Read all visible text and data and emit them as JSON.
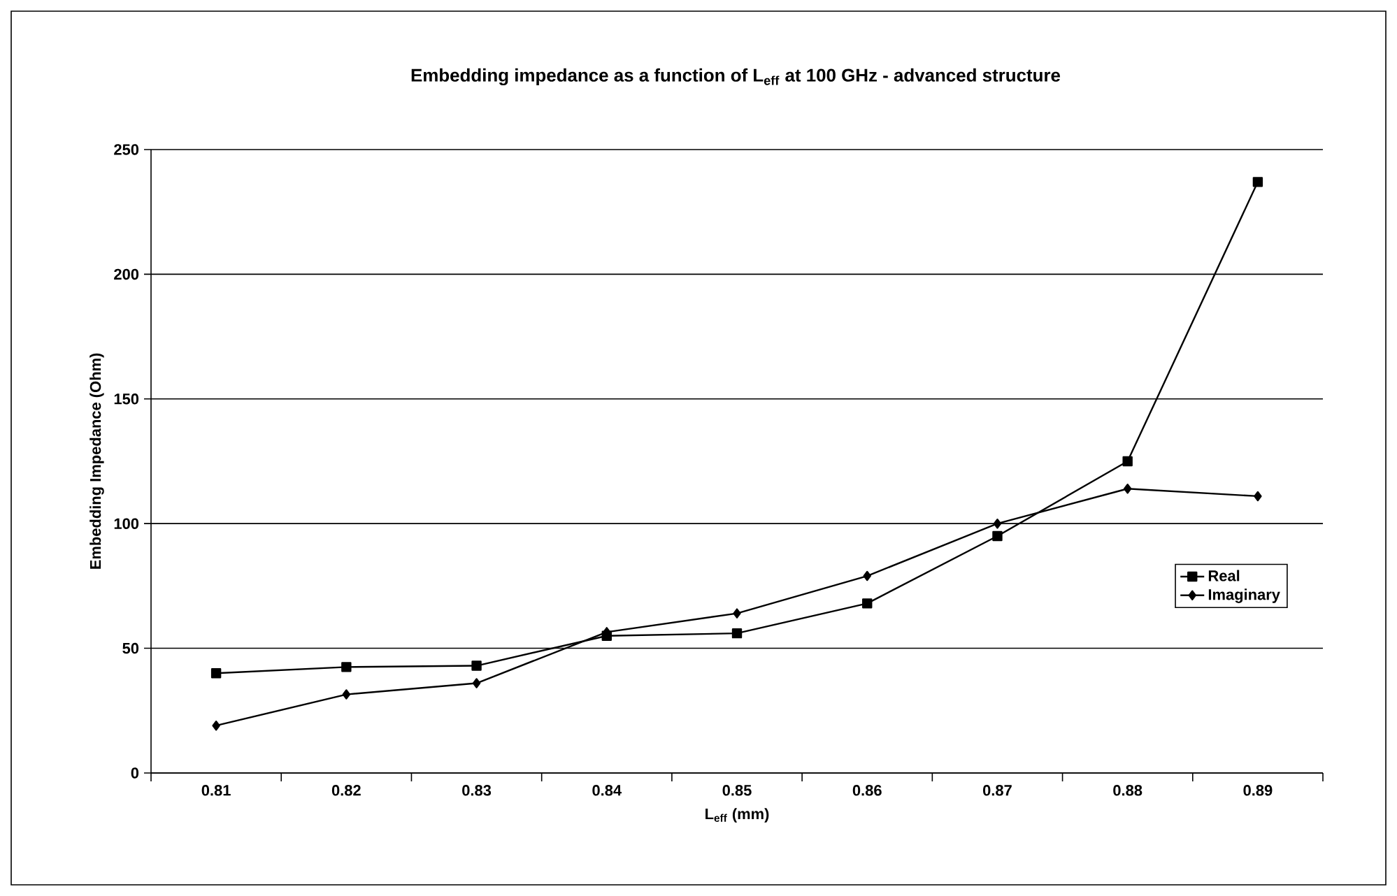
{
  "chart_data": {
    "type": "line",
    "title": "Embedding impedance as a function of L$_{eff}$ at 100 GHz - advanced structure",
    "xlabel": "L$_{eff}$ (mm)",
    "ylabel": "Embedding Impedance (Ohm)",
    "categories": [
      "0.81",
      "0.82",
      "0.83",
      "0.84",
      "0.85",
      "0.86",
      "0.87",
      "0.88",
      "0.89"
    ],
    "series": [
      {
        "name": "Real",
        "color": "#000000",
        "marker": "square",
        "values": [
          40,
          42.5,
          43,
          55,
          56,
          68,
          95,
          125,
          237
        ]
      },
      {
        "name": "Imaginary",
        "color": "#000000",
        "marker": "diamond",
        "values": [
          19,
          31.5,
          36,
          56.5,
          64,
          79,
          100,
          114,
          111
        ]
      }
    ],
    "ylim": [
      0,
      250
    ],
    "yticks": [
      0,
      50,
      100,
      150,
      200,
      250
    ],
    "grid": "y",
    "legend": "right",
    "line_style": "solid"
  }
}
